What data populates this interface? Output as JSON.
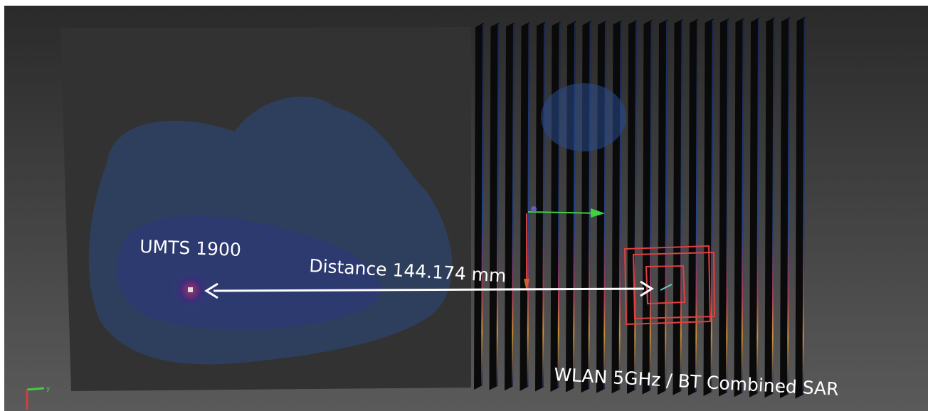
{
  "labels": {
    "left_source": "UMTS 1900",
    "distance": "Distance 144.174 mm",
    "right_source": "WLAN 5GHz / BT Combined SAR",
    "axis_y": "y"
  }
}
